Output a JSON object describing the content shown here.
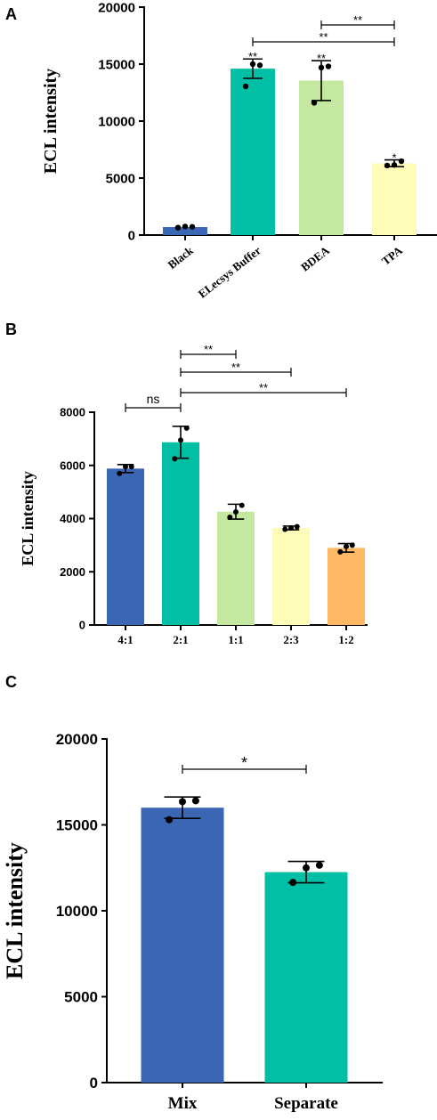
{
  "chart_data": [
    {
      "panel": "A",
      "type": "bar",
      "categories": [
        "Black",
        "ELecsys Buffer",
        "BDEA",
        "TPA"
      ],
      "values": [
        700,
        14600,
        13550,
        6300
      ],
      "errors": [
        0,
        850,
        1750,
        300
      ],
      "points": [
        [
          650,
          750,
          720
        ],
        [
          13050,
          15000,
          14900
        ],
        [
          11600,
          14700,
          14800
        ],
        [
          6100,
          6150,
          6480
        ]
      ],
      "colors": [
        "#3a66b3",
        "#00bfa5",
        "#c5e8a0",
        "#fffbb8"
      ],
      "ylabel": "ECL intensity",
      "ylim": [
        0,
        20000
      ],
      "yticks": [
        0,
        5000,
        10000,
        15000,
        20000
      ],
      "bar_labels": [
        "",
        "**",
        "**",
        "*"
      ],
      "brackets": [
        {
          "from": 2,
          "to": 3,
          "label": "**"
        },
        {
          "from": 1,
          "to": 3,
          "label": "**"
        }
      ]
    },
    {
      "panel": "B",
      "type": "bar",
      "categories": [
        "4:1",
        "2:1",
        "1:1",
        "2:3",
        "1:2"
      ],
      "values": [
        5880,
        6870,
        4260,
        3650,
        2900
      ],
      "errors": [
        150,
        600,
        280,
        70,
        160
      ],
      "points": [
        [
          5700,
          5950,
          5950
        ],
        [
          6250,
          6950,
          7400
        ],
        [
          4050,
          4250,
          4500
        ],
        [
          3600,
          3650,
          3700
        ],
        [
          2750,
          2950,
          3000
        ]
      ],
      "colors": [
        "#3a66b3",
        "#00bfa5",
        "#c5e8a0",
        "#fffbb8",
        "#ffb865"
      ],
      "ylabel": "ECL intensity",
      "ylim": [
        0,
        8000
      ],
      "yticks": [
        0,
        2000,
        4000,
        6000,
        8000
      ],
      "bar_labels": [
        "",
        "",
        "",
        "",
        ""
      ],
      "brackets": [
        {
          "from": 1,
          "to": 2,
          "label": "**"
        },
        {
          "from": 1,
          "to": 3,
          "label": "**"
        },
        {
          "from": 1,
          "to": 4,
          "label": "**"
        },
        {
          "from": 0,
          "to": 1,
          "label": "ns"
        }
      ]
    },
    {
      "panel": "C",
      "type": "bar",
      "categories": [
        "Mix",
        "Separate"
      ],
      "values": [
        16000,
        12250
      ],
      "errors": [
        620,
        620
      ],
      "points": [
        [
          15300,
          16350,
          16400
        ],
        [
          11650,
          12500,
          12650
        ]
      ],
      "colors": [
        "#3a66b3",
        "#00bfa5"
      ],
      "ylabel": "ECL intensity",
      "ylim": [
        0,
        20000
      ],
      "yticks": [
        0,
        5000,
        10000,
        15000,
        20000
      ],
      "bar_labels": [
        "",
        ""
      ],
      "brackets": [
        {
          "from": 0,
          "to": 1,
          "label": "*"
        }
      ]
    }
  ]
}
